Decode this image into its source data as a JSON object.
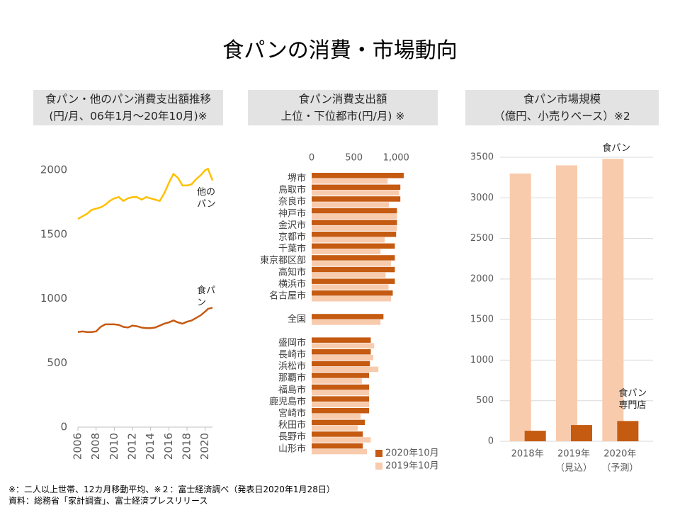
{
  "title": "食パンの消費・市場動向",
  "chart_data": [
    {
      "type": "line",
      "title": "食パン・他のパン消費支出額推移",
      "subtitle": "(円/月、06年1月～20年10月)※",
      "x": [
        2006,
        2006.5,
        2007,
        2007.5,
        2008,
        2008.5,
        2009,
        2009.5,
        2010,
        2010.5,
        2011,
        2011.5,
        2012,
        2012.5,
        2013,
        2013.5,
        2014,
        2014.5,
        2015,
        2015.5,
        2016,
        2016.5,
        2017,
        2017.5,
        2018,
        2018.5,
        2019,
        2019.5,
        2020,
        2020.3,
        2020.8
      ],
      "series": [
        {
          "name": "他のパン",
          "color": "#ffc000",
          "values": [
            1620,
            1640,
            1660,
            1690,
            1700,
            1710,
            1730,
            1760,
            1780,
            1790,
            1760,
            1780,
            1790,
            1790,
            1770,
            1790,
            1780,
            1770,
            1760,
            1820,
            1900,
            1970,
            1940,
            1880,
            1880,
            1890,
            1930,
            1960,
            2000,
            2010,
            1920
          ]
        },
        {
          "name": "食パン",
          "color": "#c55a11",
          "values": [
            740,
            745,
            740,
            740,
            745,
            780,
            800,
            800,
            800,
            795,
            780,
            775,
            790,
            785,
            775,
            770,
            770,
            775,
            790,
            805,
            815,
            830,
            815,
            805,
            820,
            830,
            850,
            870,
            900,
            920,
            930
          ]
        }
      ],
      "xlim": [
        2006,
        2020.8
      ],
      "xticks": [
        2006,
        2008,
        2010,
        2012,
        2014,
        2016,
        2018,
        2020
      ],
      "ylim": [
        0,
        2100
      ],
      "yticks": [
        0,
        500,
        1000,
        1500,
        2000
      ],
      "grid": false
    },
    {
      "type": "hbar",
      "title": "食パン消費支出額",
      "subtitle": "上位・下位都市(円/月) ※",
      "categories": [
        "堺市",
        "鳥取市",
        "奈良市",
        "神戸市",
        "金沢市",
        "京都市",
        "千葉市",
        "東京都区部",
        "高知市",
        "横浜市",
        "名古屋市",
        null,
        "全国",
        null,
        "盛岡市",
        "長崎市",
        "浜松市",
        "那覇市",
        "福島市",
        "鹿児島市",
        "宮崎市",
        "秋田市",
        "長野市",
        "山形市"
      ],
      "series": [
        {
          "name": "2020年10月",
          "color": "#c55a11",
          "values": [
            1090,
            1050,
            1050,
            1010,
            1010,
            1000,
            985,
            985,
            985,
            985,
            960,
            null,
            850,
            null,
            700,
            700,
            690,
            680,
            680,
            680,
            680,
            630,
            605,
            605
          ]
        },
        {
          "name": "2019年10月",
          "color": "#f8cbad",
          "values": [
            900,
            1035,
            915,
            1010,
            1010,
            865,
            815,
            940,
            875,
            910,
            940,
            null,
            815,
            null,
            740,
            730,
            790,
            595,
            680,
            680,
            580,
            545,
            700,
            655
          ]
        }
      ],
      "xlim": [
        0,
        1300
      ],
      "xticks": [
        0,
        500,
        {
          "value": 1000,
          "label": "1,000"
        }
      ],
      "grid": false
    },
    {
      "type": "bar",
      "title": "食パン市場規模",
      "subtitle": "（億円、小売りベース）※2",
      "categories": [
        "2018年",
        "2019年",
        "2020年"
      ],
      "category_notes": [
        null,
        "（見込）",
        "（予測）"
      ],
      "series": [
        {
          "name": "食パン",
          "color": "#f8cbad",
          "values": [
            3300,
            3400,
            3480
          ]
        },
        {
          "name": "食パン専門店",
          "color": "#c55a11",
          "values": [
            130,
            200,
            250
          ]
        }
      ],
      "ylim": [
        0,
        3500
      ],
      "yticks": [
        0,
        500,
        1000,
        1500,
        2000,
        2500,
        3000,
        3500
      ],
      "grid": true
    }
  ],
  "footnotes": [
    "※：二人以上世帯、12カ月移動平均、※２：富士経済調べ（発表日2020年1月28日）",
    "資料：総務省「家計調査」、富士経済プレスリリース"
  ]
}
